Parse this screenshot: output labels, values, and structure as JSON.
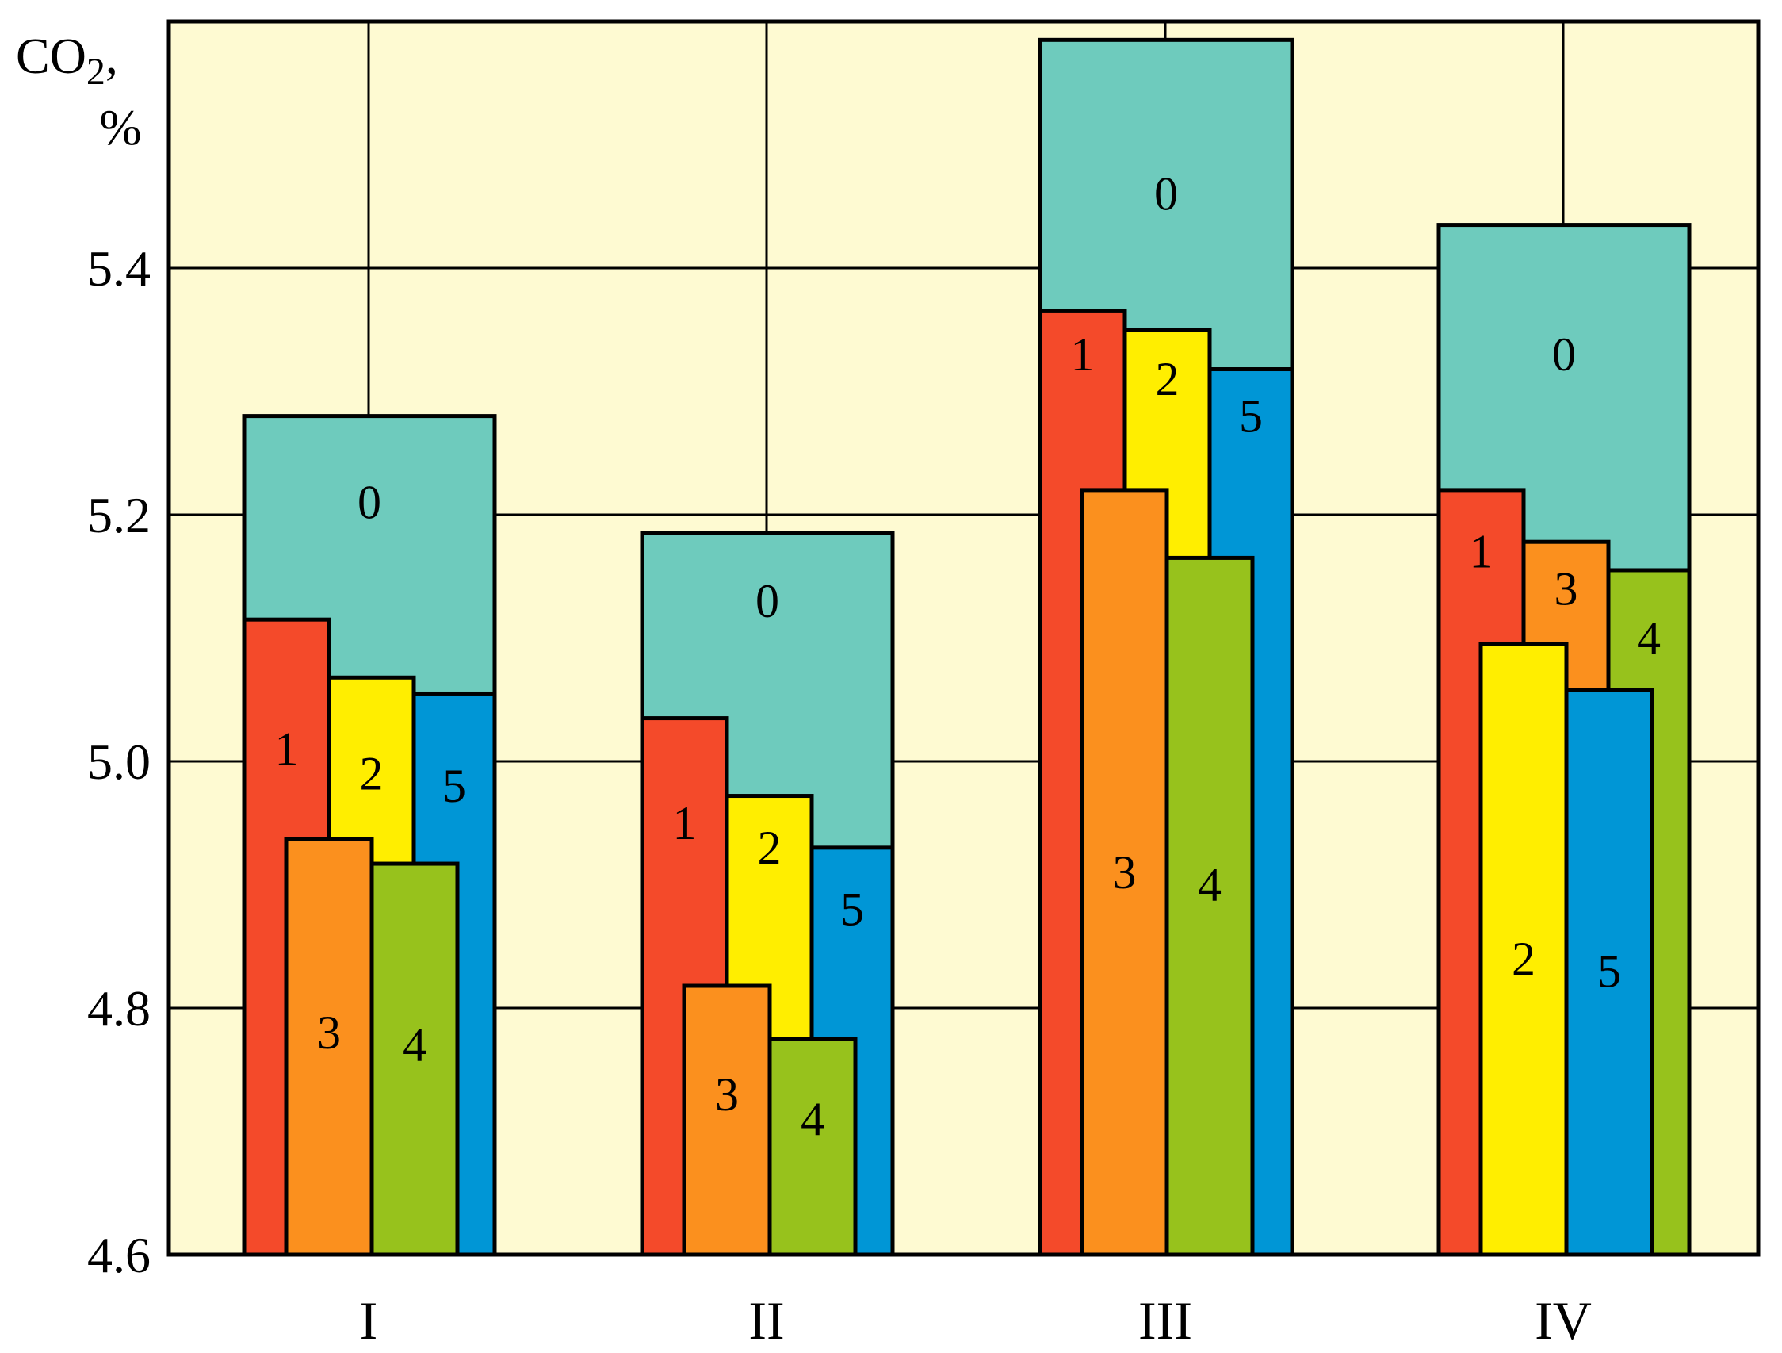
{
  "chart_data": {
    "type": "bar",
    "title": "",
    "ylabel": "CO",
    "ylabel_sub": "2",
    "ylabel_suffix": ",",
    "ylabel_unit": "%",
    "xlabel": "",
    "ylim": [
      4.6,
      5.6
    ],
    "yticks": [
      {
        "value": 4.6,
        "label": "4.6"
      },
      {
        "value": 4.8,
        "label": "4.8"
      },
      {
        "value": 5.0,
        "label": "5.0"
      },
      {
        "value": 5.2,
        "label": "5.2"
      },
      {
        "value": 5.4,
        "label": "5.4"
      }
    ],
    "grid": true,
    "categories": [
      "I",
      "II",
      "III",
      "IV"
    ],
    "colors": {
      "0": "#6ecbbd",
      "1": "#f44a2a",
      "2": "#ffee00",
      "3": "#fb901e",
      "4": "#97c21c",
      "5": "#0096d6",
      "background": "#fefad2"
    },
    "series": [
      {
        "name": "0",
        "values": [
          5.28,
          5.185,
          5.585,
          5.435
        ]
      },
      {
        "name": "1",
        "values": [
          5.115,
          5.035,
          5.365,
          5.22
        ]
      },
      {
        "name": "2",
        "values": [
          5.068,
          4.972,
          5.35,
          5.095
        ]
      },
      {
        "name": "3",
        "values": [
          4.937,
          4.818,
          5.22,
          5.178
        ]
      },
      {
        "name": "4",
        "values": [
          4.917,
          4.775,
          5.165,
          5.155
        ]
      },
      {
        "name": "5",
        "values": [
          5.055,
          4.93,
          5.318,
          5.058
        ]
      }
    ]
  }
}
